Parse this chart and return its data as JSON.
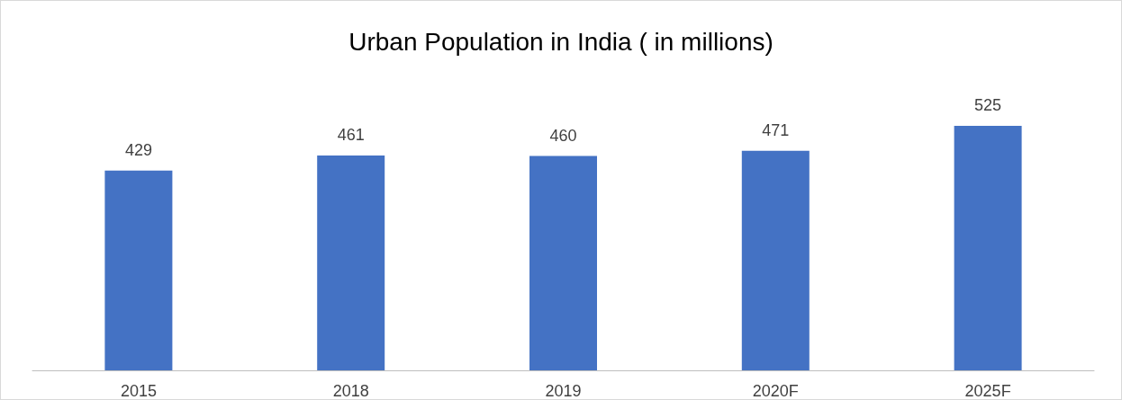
{
  "chart_data": {
    "type": "bar",
    "title": "Urban Population in India ( in millions)",
    "categories": [
      "2015",
      "2018",
      "2019",
      "2020F",
      "2025F"
    ],
    "values": [
      429,
      461,
      460,
      471,
      525
    ],
    "color": "#4472c4",
    "data_labels": true
  }
}
